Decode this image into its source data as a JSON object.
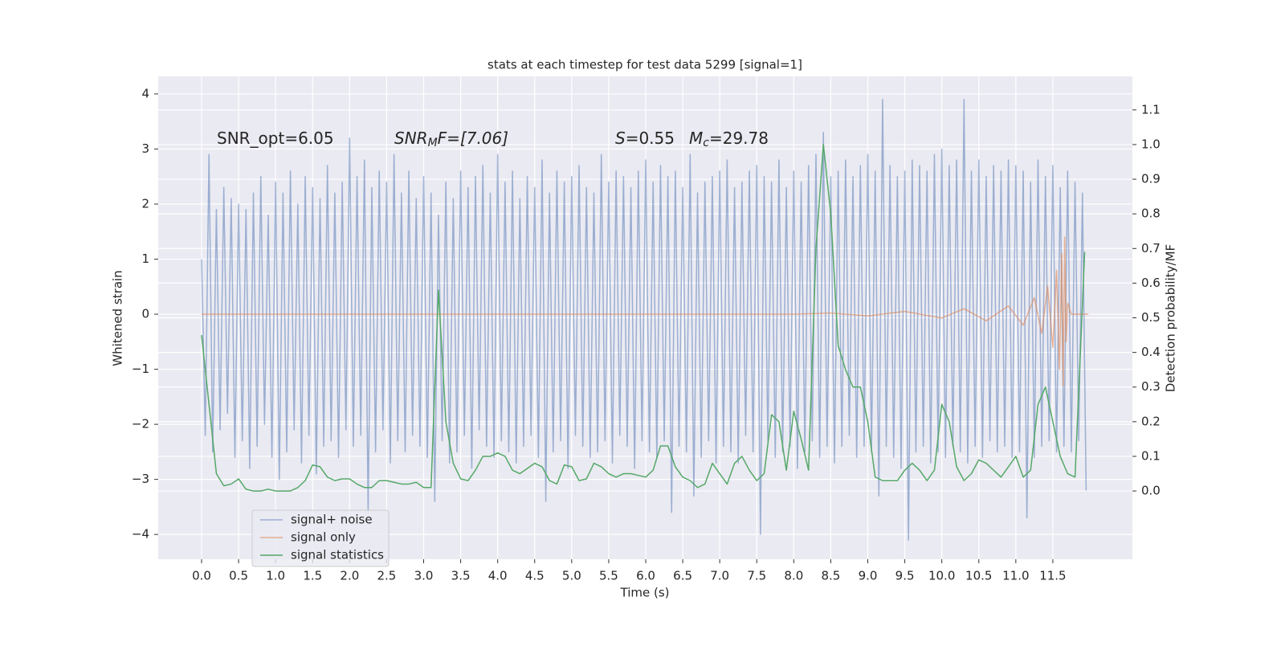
{
  "chart_data": {
    "type": "line",
    "title": "stats at each timestep for test data 5299 [signal=1]",
    "x_label": "Time (s)",
    "y_label": "Whitened strain",
    "y2_label": "Detection probability/MF",
    "annotations": [
      {
        "base": "SNR_opt=6.05"
      },
      {
        "base": "SNR",
        "sub": "M",
        "rest": "F=[7.06]"
      },
      {
        "base": "S",
        "rest": "=0.55"
      },
      {
        "base": "M",
        "sub": "c",
        "rest": "=29.78"
      }
    ],
    "xlim": [
      -0.586,
      12.575
    ],
    "ylim": [
      -4.45,
      4.32
    ],
    "y2lim": [
      -0.197,
      1.197
    ],
    "xticks": [
      {
        "value": 0,
        "label": "0.0"
      },
      0.5,
      {
        "value": 1,
        "label": "1.0"
      },
      1.5,
      {
        "value": 2,
        "label": "2.0"
      },
      2.5,
      {
        "value": 3,
        "label": "3.0"
      },
      3.5,
      {
        "value": 4,
        "label": "4.0"
      },
      4.5,
      {
        "value": 5,
        "label": "5.0"
      },
      5.5,
      {
        "value": 6,
        "label": "6.0"
      },
      6.5,
      {
        "value": 7,
        "label": "7.0"
      },
      7.5,
      {
        "value": 8,
        "label": "8.0"
      },
      8.5,
      {
        "value": 9,
        "label": "9.0"
      },
      9.5,
      {
        "value": 10,
        "label": "10.0"
      },
      10.5,
      {
        "value": 11,
        "label": "11.0"
      },
      11.5
    ],
    "yticks": [
      {
        "value": -4,
        "label": "−4"
      },
      {
        "value": -3,
        "label": "−3"
      },
      {
        "value": -2,
        "label": "−2"
      },
      {
        "value": -1,
        "label": "−1"
      },
      0,
      1,
      2,
      3,
      4
    ],
    "y2ticks": [
      {
        "value": 0,
        "label": "0.0"
      },
      0.1,
      0.2,
      0.3,
      0.4,
      0.5,
      0.6,
      0.7,
      0.8,
      0.9,
      {
        "value": 1,
        "label": "1.0"
      },
      1.1
    ],
    "grid": true,
    "legend": "lower left",
    "series": [
      {
        "name": "signal+ noise",
        "color": "#4c72b0",
        "opacity": 0.5,
        "x": [
          0,
          0.05,
          0.1,
          0.15,
          0.2,
          0.25,
          0.3,
          0.35,
          0.4,
          0.45,
          0.5,
          0.55,
          0.6,
          0.65,
          0.7,
          0.75,
          0.8,
          0.85,
          0.9,
          0.95,
          1,
          1.05,
          1.1,
          1.15,
          1.2,
          1.25,
          1.3,
          1.35,
          1.4,
          1.45,
          1.5,
          1.55,
          1.6,
          1.65,
          1.7,
          1.75,
          1.8,
          1.85,
          1.9,
          1.95,
          2,
          2.05,
          2.1,
          2.15,
          2.2,
          2.25,
          2.3,
          2.35,
          2.4,
          2.45,
          2.5,
          2.55,
          2.6,
          2.65,
          2.7,
          2.75,
          2.8,
          2.85,
          2.9,
          2.95,
          3,
          3.05,
          3.1,
          3.15,
          3.2,
          3.25,
          3.3,
          3.35,
          3.4,
          3.45,
          3.5,
          3.55,
          3.6,
          3.65,
          3.7,
          3.75,
          3.8,
          3.85,
          3.9,
          3.95,
          4,
          4.05,
          4.1,
          4.15,
          4.2,
          4.25,
          4.3,
          4.35,
          4.4,
          4.45,
          4.5,
          4.55,
          4.6,
          4.65,
          4.7,
          4.75,
          4.8,
          4.85,
          4.9,
          4.95,
          5,
          5.05,
          5.1,
          5.15,
          5.2,
          5.25,
          5.3,
          5.35,
          5.4,
          5.45,
          5.5,
          5.55,
          5.6,
          5.65,
          5.7,
          5.75,
          5.8,
          5.85,
          5.9,
          5.95,
          6,
          6.05,
          6.1,
          6.15,
          6.2,
          6.25,
          6.3,
          6.35,
          6.4,
          6.45,
          6.5,
          6.55,
          6.6,
          6.65,
          6.7,
          6.75,
          6.8,
          6.85,
          6.9,
          6.95,
          7,
          7.05,
          7.1,
          7.15,
          7.2,
          7.25,
          7.3,
          7.35,
          7.4,
          7.45,
          7.5,
          7.55,
          7.6,
          7.65,
          7.7,
          7.75,
          7.8,
          7.85,
          7.9,
          7.95,
          8,
          8.05,
          8.1,
          8.15,
          8.2,
          8.25,
          8.3,
          8.35,
          8.4,
          8.45,
          8.5,
          8.55,
          8.6,
          8.65,
          8.7,
          8.75,
          8.8,
          8.85,
          8.9,
          8.95,
          9,
          9.05,
          9.1,
          9.15,
          9.2,
          9.25,
          9.3,
          9.35,
          9.4,
          9.45,
          9.5,
          9.55,
          9.6,
          9.65,
          9.7,
          9.75,
          9.8,
          9.85,
          9.9,
          9.95,
          10,
          10.05,
          10.1,
          10.15,
          10.2,
          10.25,
          10.3,
          10.35,
          10.4,
          10.45,
          10.5,
          10.55,
          10.6,
          10.65,
          10.7,
          10.75,
          10.8,
          10.85,
          10.9,
          10.95,
          11,
          11.05,
          11.1,
          11.15,
          11.2,
          11.25,
          11.3,
          11.35,
          11.4,
          11.45,
          11.5,
          11.55,
          11.6,
          11.65,
          11.7,
          11.75,
          11.8,
          11.85,
          11.9,
          11.95
        ],
        "values": [
          1.0,
          -2.2,
          2.9,
          -2.5,
          1.9,
          -2.1,
          2.3,
          -1.8,
          2.1,
          -2.6,
          2.0,
          -2.3,
          1.9,
          -2.8,
          2.2,
          -2.4,
          2.5,
          -2.0,
          1.8,
          -2.6,
          2.4,
          -3.0,
          2.2,
          -2.5,
          2.6,
          -2.1,
          2.0,
          -2.7,
          2.5,
          -2.2,
          2.3,
          -2.9,
          2.1,
          -2.4,
          2.7,
          -2.3,
          2.2,
          -2.6,
          2.4,
          -2.1,
          3.2,
          -2.4,
          2.5,
          -2.2,
          2.8,
          -3.6,
          2.3,
          -2.5,
          2.6,
          -2.1,
          2.4,
          -2.7,
          2.9,
          -2.3,
          2.2,
          -2.5,
          2.6,
          -2.2,
          2.1,
          -2.4,
          2.5,
          -2.6,
          2.2,
          -3.4,
          1.8,
          -2.3,
          2.4,
          -2.7,
          2.1,
          -2.5,
          2.6,
          -2.2,
          2.3,
          -2.8,
          2.5,
          -2.1,
          2.7,
          -2.4,
          2.2,
          -2.6,
          2.9,
          -2.3,
          2.4,
          -2.5,
          2.6,
          -2.7,
          2.1,
          -2.4,
          2.5,
          -2.2,
          2.3,
          -2.6,
          2.8,
          -3.4,
          2.2,
          -2.5,
          2.6,
          -2.3,
          2.4,
          -2.8,
          2.5,
          -2.2,
          2.7,
          -2.4,
          2.3,
          -2.6,
          2.2,
          -2.5,
          2.9,
          -2.3,
          2.4,
          -2.7,
          2.6,
          -2.2,
          2.5,
          -2.4,
          2.3,
          -2.8,
          2.6,
          -2.3,
          2.8,
          -2.5,
          2.4,
          -2.6,
          2.7,
          -2.3,
          2.5,
          -3.6,
          2.6,
          -2.4,
          2.3,
          -2.5,
          2.9,
          -3.3,
          2.2,
          -2.6,
          2.4,
          -2.3,
          2.5,
          -2.7,
          2.6,
          -2.4,
          2.8,
          -2.5,
          2.3,
          -2.7,
          2.4,
          -2.2,
          2.6,
          -2.5,
          2.7,
          -4.0,
          2.5,
          -2.3,
          2.4,
          -2.6,
          2.8,
          -2.5,
          2.3,
          -2.4,
          2.6,
          -2.8,
          2.4,
          -2.5,
          2.7,
          -2.3,
          2.9,
          -2.6,
          3.3,
          -2.4,
          2.5,
          -2.7,
          2.6,
          -2.4,
          2.8,
          -2.2,
          2.5,
          -2.6,
          2.7,
          -2.4,
          2.9,
          -2.5,
          2.6,
          -3.3,
          3.9,
          -2.4,
          2.7,
          -2.6,
          2.5,
          -2.8,
          2.6,
          -4.1,
          2.8,
          -2.5,
          2.7,
          -2.4,
          2.6,
          -2.7,
          2.9,
          -2.5,
          3.0,
          -2.6,
          2.7,
          -2.4,
          2.8,
          -2.5,
          3.9,
          -2.7,
          2.6,
          -2.4,
          2.8,
          -2.6,
          2.5,
          -2.3,
          2.7,
          -2.5,
          2.6,
          -2.4,
          2.8,
          -2.6,
          2.7,
          -2.5,
          2.6,
          -3.7,
          2.4,
          -2.6,
          2.8,
          -2.4,
          2.5,
          -2.3,
          2.7,
          -2.5,
          2.3,
          -2.4,
          2.6,
          -2.5,
          2.4,
          -2.3,
          2.2,
          -3.2
        ]
      },
      {
        "name": "signal only",
        "color": "#dd8452",
        "opacity": 0.6,
        "x": [
          0,
          8.0,
          8.5,
          9.0,
          9.5,
          10.0,
          10.3,
          10.6,
          10.9,
          11.1,
          11.25,
          11.35,
          11.43,
          11.5,
          11.55,
          11.59,
          11.62,
          11.64,
          11.66,
          11.68,
          11.7,
          11.75,
          11.98
        ],
        "values": [
          0,
          0,
          0.02,
          -0.03,
          0.05,
          -0.07,
          0.1,
          -0.12,
          0.15,
          -0.2,
          0.3,
          -0.35,
          0.5,
          -0.6,
          0.8,
          -1.0,
          1.1,
          -1.3,
          1.4,
          -0.5,
          0.2,
          0,
          0
        ]
      },
      {
        "name": "signal statistics",
        "color": "#55a868",
        "opacity": 1,
        "axis": "y2",
        "x": [
          0,
          0.1,
          0.2,
          0.3,
          0.4,
          0.5,
          0.6,
          0.7,
          0.8,
          0.9,
          1,
          1.1,
          1.2,
          1.3,
          1.4,
          1.5,
          1.6,
          1.7,
          1.8,
          1.9,
          2,
          2.1,
          2.2,
          2.3,
          2.4,
          2.5,
          2.6,
          2.7,
          2.8,
          2.9,
          3,
          3.1,
          3.2,
          3.3,
          3.4,
          3.5,
          3.6,
          3.7,
          3.8,
          3.9,
          4,
          4.1,
          4.2,
          4.3,
          4.4,
          4.5,
          4.6,
          4.7,
          4.8,
          4.9,
          5,
          5.1,
          5.2,
          5.3,
          5.4,
          5.5,
          5.6,
          5.7,
          5.8,
          5.9,
          6,
          6.1,
          6.2,
          6.3,
          6.4,
          6.5,
          6.6,
          6.7,
          6.8,
          6.9,
          7,
          7.1,
          7.2,
          7.3,
          7.4,
          7.5,
          7.6,
          7.7,
          7.8,
          7.9,
          8,
          8.1,
          8.2,
          8.3,
          8.4,
          8.5,
          8.6,
          8.7,
          8.8,
          8.9,
          9,
          9.1,
          9.2,
          9.3,
          9.4,
          9.5,
          9.6,
          9.7,
          9.8,
          9.9,
          10,
          10.1,
          10.2,
          10.3,
          10.4,
          10.5,
          10.6,
          10.7,
          10.8,
          10.9,
          11,
          11.1,
          11.2,
          11.3,
          11.4,
          11.5,
          11.6,
          11.7,
          11.8,
          11.93
        ],
        "values": [
          0.45,
          0.25,
          0.05,
          0.015,
          0.02,
          0.035,
          0.005,
          0.0,
          0.0,
          0.005,
          0.0,
          0.0,
          0.0,
          0.01,
          0.03,
          0.075,
          0.07,
          0.04,
          0.03,
          0.035,
          0.035,
          0.02,
          0.01,
          0.01,
          0.03,
          0.03,
          0.025,
          0.02,
          0.02,
          0.025,
          0.01,
          0.01,
          0.58,
          0.2,
          0.08,
          0.035,
          0.03,
          0.06,
          0.1,
          0.1,
          0.11,
          0.1,
          0.06,
          0.05,
          0.065,
          0.08,
          0.07,
          0.03,
          0.02,
          0.075,
          0.07,
          0.03,
          0.035,
          0.08,
          0.07,
          0.05,
          0.04,
          0.05,
          0.05,
          0.045,
          0.04,
          0.06,
          0.13,
          0.13,
          0.07,
          0.04,
          0.03,
          0.01,
          0.02,
          0.08,
          0.05,
          0.02,
          0.08,
          0.1,
          0.06,
          0.03,
          0.05,
          0.22,
          0.2,
          0.06,
          0.23,
          0.15,
          0.06,
          0.7,
          1.0,
          0.8,
          0.42,
          0.35,
          0.3,
          0.3,
          0.2,
          0.04,
          0.03,
          0.03,
          0.03,
          0.06,
          0.08,
          0.06,
          0.03,
          0.06,
          0.25,
          0.2,
          0.07,
          0.03,
          0.05,
          0.09,
          0.08,
          0.06,
          0.04,
          0.07,
          0.1,
          0.04,
          0.06,
          0.25,
          0.3,
          0.2,
          0.1,
          0.05,
          0.04,
          0.69
        ]
      }
    ]
  }
}
